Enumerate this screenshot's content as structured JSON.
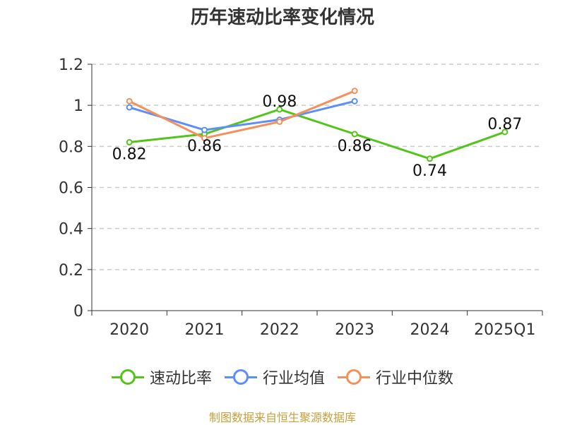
{
  "chart_data": {
    "type": "line",
    "title": "历年速动比率变化情况",
    "categories": [
      "2020",
      "2021",
      "2022",
      "2023",
      "2024",
      "2025Q1"
    ],
    "ylim": [
      0,
      1.2
    ],
    "yticks": [
      "0",
      "0.2",
      "0.4",
      "0.6",
      "0.8",
      "1",
      "1.2"
    ],
    "grid": true,
    "legend_position": "bottom",
    "series": [
      {
        "name": "速动比率",
        "color": "#52c41a",
        "values": [
          0.82,
          0.86,
          0.98,
          0.86,
          0.74,
          0.87
        ],
        "labels": [
          "0.82",
          "0.86",
          "0.98",
          "0.86",
          "0.74",
          "0.87"
        ]
      },
      {
        "name": "行业均值",
        "color": "#5b8ff9",
        "values": [
          0.99,
          0.88,
          0.93,
          1.02,
          null,
          null
        ]
      },
      {
        "name": "行业中位数",
        "color": "#f6905a",
        "values": [
          1.02,
          0.84,
          0.92,
          1.07,
          null,
          null
        ]
      }
    ]
  },
  "source_text": "制图数据来自恒生聚源数据库",
  "source_color": "#c8a03c"
}
